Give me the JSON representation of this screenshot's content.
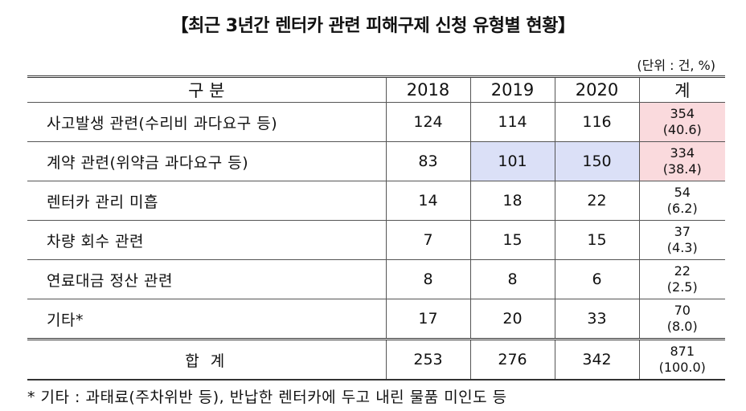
{
  "title": "【최근 3년간 렌터카 관련 피해구제 신청 유형별 현황】",
  "unit": "(단위 : 건, %)",
  "header": {
    "category": "구 분",
    "years": [
      "2018",
      "2019",
      "2020"
    ],
    "total": "계"
  },
  "rows": [
    {
      "label": "사고발생 관련(수리비 과다요구 등)",
      "v2018": "124",
      "v2019": "114",
      "v2020": "116",
      "sum": "354",
      "pct": "(40.6)"
    },
    {
      "label": "계약 관련(위약금 과다요구 등)",
      "v2018": "83",
      "v2019": "101",
      "v2020": "150",
      "sum": "334",
      "pct": "(38.4)"
    },
    {
      "label": "렌터카 관리 미흡",
      "v2018": "14",
      "v2019": "18",
      "v2020": "22",
      "sum": "54",
      "pct": "(6.2)"
    },
    {
      "label": "차량 회수 관련",
      "v2018": "7",
      "v2019": "15",
      "v2020": "15",
      "sum": "37",
      "pct": "(4.3)"
    },
    {
      "label": "연료대금 정산 관련",
      "v2018": "8",
      "v2019": "8",
      "v2020": "6",
      "sum": "22",
      "pct": "(2.5)"
    },
    {
      "label": "기타*",
      "v2018": "17",
      "v2019": "20",
      "v2020": "33",
      "sum": "70",
      "pct": "(8.0)"
    }
  ],
  "total_row": {
    "label": "합 계",
    "v2018": "253",
    "v2019": "276",
    "v2020": "342",
    "sum": "871",
    "pct": "(100.0)"
  },
  "footnote": "* 기타 : 과태료(주차위반 등), 반납한 렌터카에 두고 내린 물품 미인도 등",
  "colors": {
    "highlight_blue": "#dbe0f7",
    "highlight_pink": "#fadadd"
  }
}
